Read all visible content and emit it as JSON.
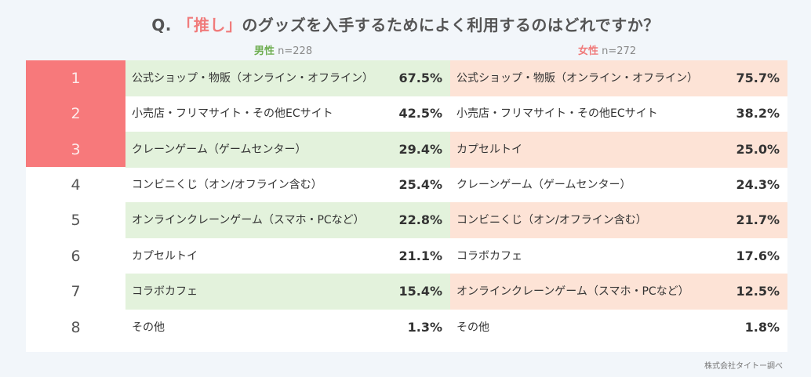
{
  "title": {
    "prefix": "Q. ",
    "highlight": "「推し」",
    "suffix": "のグッズを入手するためによく利用するのはどれですか？"
  },
  "groups": {
    "male": {
      "label": "男性",
      "n": "n=228"
    },
    "female": {
      "label": "女性",
      "n": "n=272"
    }
  },
  "source": "株式会社タイトー調べ",
  "colors": {
    "top_rank": "#f7797b",
    "male_band": "#e3f2dc",
    "female_band": "#fde3d6",
    "male_accent": "#6fae52",
    "female_accent": "#f07b7b"
  },
  "chart_data": {
    "type": "table",
    "title": "Q. 「推し」のグッズを入手するためによく利用するのはどれですか？",
    "columns": [
      "rank",
      "男性 n=228",
      "男性 %",
      "女性 n=272",
      "女性 %"
    ],
    "rows": [
      {
        "rank": "1",
        "male": "公式ショップ・物販（オンライン・オフライン）",
        "male_pct": "67.5%",
        "female": "公式ショップ・物販（オンライン・オフライン）",
        "female_pct": "75.7%"
      },
      {
        "rank": "2",
        "male": "小売店・フリマサイト・その他ECサイト",
        "male_pct": "42.5%",
        "female": "小売店・フリマサイト・その他ECサイト",
        "female_pct": "38.2%"
      },
      {
        "rank": "3",
        "male": "クレーンゲーム（ゲームセンター）",
        "male_pct": "29.4%",
        "female": "カプセルトイ",
        "female_pct": "25.0%"
      },
      {
        "rank": "4",
        "male": "コンビニくじ（オン/オフライン含む）",
        "male_pct": "25.4%",
        "female": "クレーンゲーム（ゲームセンター）",
        "female_pct": "24.3%"
      },
      {
        "rank": "5",
        "male": "オンラインクレーンゲーム（スマホ・PCなど）",
        "male_pct": "22.8%",
        "female": "コンビニくじ（オン/オフライン含む）",
        "female_pct": "21.7%"
      },
      {
        "rank": "6",
        "male": "カプセルトイ",
        "male_pct": "21.1%",
        "female": "コラボカフェ",
        "female_pct": "17.6%"
      },
      {
        "rank": "7",
        "male": "コラボカフェ",
        "male_pct": "15.4%",
        "female": "オンラインクレーンゲーム（スマホ・PCなど）",
        "female_pct": "12.5%"
      },
      {
        "rank": "8",
        "male": "その他",
        "male_pct": "1.3%",
        "female": "その他",
        "female_pct": "1.8%"
      }
    ]
  }
}
